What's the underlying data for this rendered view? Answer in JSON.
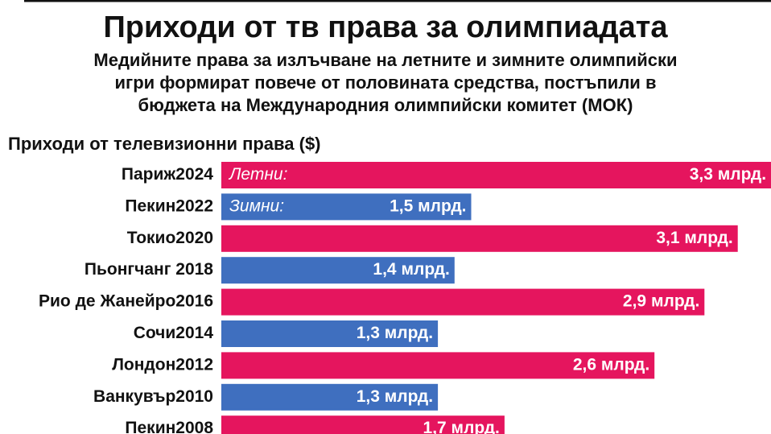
{
  "chart_data": {
    "type": "hbar",
    "title": "Приходи от тв права за олимпиадата",
    "subtitle": [
      "Медийните права за излъчване на летните и зимните олимпийски",
      "игри формират повече от половината средства, постъпили в",
      "бюджета на Международния олимпийски комитет (МОК)"
    ],
    "axis_label": "Приходи от телевизионни права ($)",
    "categories": [
      "Париж2024",
      "Пекин2022",
      "Токио2020",
      "Пьонгчанг 2018",
      "Рио де Жанейро2016",
      "Сочи2014",
      "Лондон2012",
      "Ванкувър2010",
      "Пекин2008"
    ],
    "series": [
      {
        "name": "Летни:",
        "color": "#e5155e",
        "values": [
          3.3,
          null,
          3.1,
          null,
          2.9,
          null,
          2.6,
          null,
          1.7
        ],
        "value_labels": [
          "3,3 млрд.",
          null,
          "3,1 млрд.",
          null,
          "2,9 млрд.",
          null,
          "2,6 млрд.",
          null,
          "1,7 млрд."
        ]
      },
      {
        "name": "Зимни:",
        "color": "#3f6fbf",
        "values": [
          null,
          1.5,
          null,
          1.4,
          null,
          1.3,
          null,
          1.3,
          null
        ],
        "value_labels": [
          null,
          "1,5 млрд.",
          null,
          "1,4 млрд.",
          null,
          "1,3 млрд.",
          null,
          "1,3 млрд.",
          null
        ]
      }
    ]
  }
}
